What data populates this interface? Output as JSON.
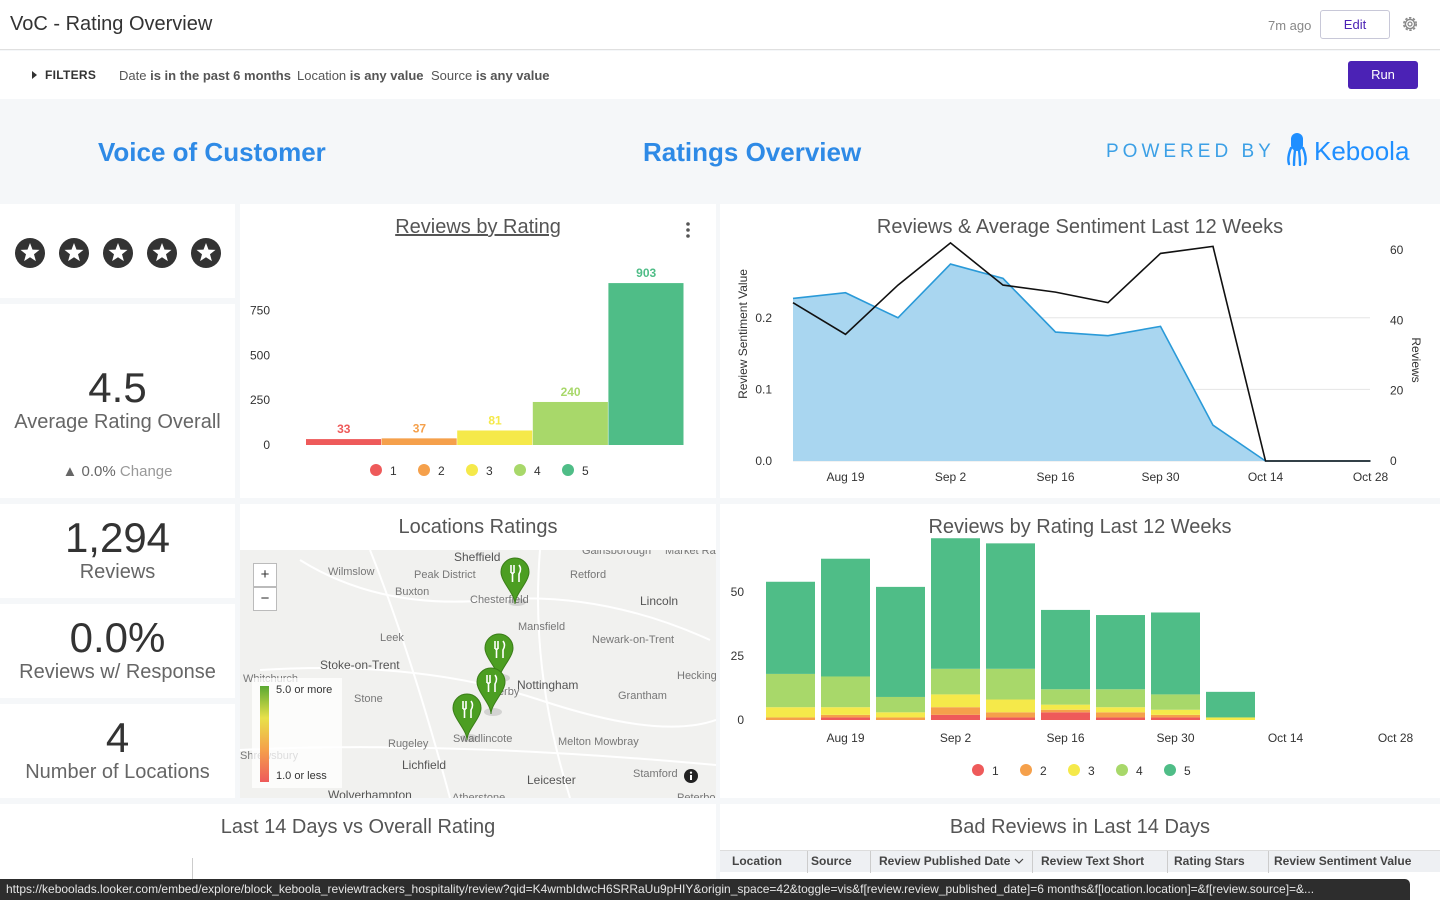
{
  "header": {
    "title": "VoC - Rating Overview",
    "updated": "7m ago",
    "edit_label": "Edit",
    "gear_icon": "gear-icon"
  },
  "filters": {
    "toggle_label": "FILTERS",
    "items": [
      {
        "field": "Date",
        "condition": "is in the past 6 months"
      },
      {
        "field": "Location",
        "condition": "is any value"
      },
      {
        "field": "Source",
        "condition": "is any value"
      }
    ],
    "run_label": "Run"
  },
  "banner": {
    "left_title": "Voice of Customer",
    "center_title": "Ratings Overview",
    "powered_by": "POWERED BY",
    "brand": "Keboola",
    "accent": "#2e8ae6"
  },
  "kpis": {
    "avg_rating": {
      "value": "4.5",
      "label": "Average Rating Overall",
      "change_arrow": "▲",
      "change_value": "0.0%",
      "change_label": "Change",
      "stars": 5
    },
    "reviews": {
      "value": "1,294",
      "label": "Reviews"
    },
    "response": {
      "value": "0.0%",
      "label": "Reviews w/ Response"
    },
    "locations": {
      "value": "4",
      "label": "Number of Locations"
    }
  },
  "rating_colors": {
    "1": "#ee5a5a",
    "2": "#f5a04b",
    "3": "#f5e94a",
    "4": "#a8d86a",
    "5": "#4fbd87"
  },
  "reviews_by_rating": {
    "title": "Reviews by Rating",
    "chart_data": {
      "type": "bar",
      "categories": [
        "1",
        "2",
        "3",
        "4",
        "5"
      ],
      "values": [
        33,
        37,
        81,
        240,
        903
      ],
      "ylim": [
        0,
        1000
      ],
      "yticks": [
        0,
        250,
        500,
        750
      ],
      "legend": [
        "1",
        "2",
        "3",
        "4",
        "5"
      ]
    }
  },
  "sentiment_chart": {
    "title": "Reviews & Average Sentiment Last 12 Weeks",
    "chart_data": {
      "type": "area",
      "x_ticks": [
        "Aug 19",
        "Sep 2",
        "Sep 16",
        "Sep 30",
        "Oct 14",
        "Oct 28"
      ],
      "ylabel_left": "Review Sentiment Value",
      "ylabel_right": "Reviews",
      "yticks_left": [
        "0.0",
        "0.1",
        "0.2"
      ],
      "yticks_right": [
        "0",
        "20",
        "40",
        "60"
      ],
      "series": [
        {
          "name": "Review Sentiment Value",
          "axis": "left",
          "values": [
            0.227,
            0.235,
            0.2,
            0.275,
            0.255,
            0.18,
            0.175,
            0.188,
            0.05,
            0,
            0,
            0
          ]
        },
        {
          "name": "Reviews",
          "axis": "right",
          "values": [
            45,
            36,
            50,
            62,
            50,
            48,
            45,
            59,
            61,
            0,
            0,
            0
          ]
        }
      ]
    }
  },
  "locations_map": {
    "title": "Locations Ratings",
    "zoom_in": "+",
    "zoom_out": "−",
    "legend_max": "5.0 or more",
    "legend_min": "1.0 or less",
    "labels": [
      "Sheffield",
      "Wilmslow",
      "Peak District",
      "Buxton",
      "Chesterfield",
      "Retford",
      "Lincoln",
      "Mansfield",
      "Leek",
      "Newark-on-Trent",
      "Stoke-on-Trent",
      "Whitchurch",
      "Stone",
      "Derby",
      "Nottingham",
      "Grantham",
      "Heckington",
      "Swadlincote",
      "Rugeley",
      "Melton Mowbray",
      "Lichfield",
      "Leicester",
      "Stamford",
      "Wolverhampton",
      "Atherstone",
      "Peterborough",
      "Market Rasen",
      "Gainsborough",
      "Shrewsbury"
    ]
  },
  "rating_weeks": {
    "title": "Reviews by Rating Last 12 Weeks",
    "chart_data": {
      "type": "bar",
      "stacked": true,
      "x_ticks": [
        "Aug 19",
        "Sep 2",
        "Sep 16",
        "Sep 30",
        "Oct 14",
        "Oct 28"
      ],
      "yticks": [
        0,
        25,
        50
      ],
      "ylim": [
        0,
        60
      ],
      "series": [
        {
          "name": "1",
          "values": [
            0,
            1,
            0,
            2,
            1,
            3,
            1,
            1,
            0,
            0,
            0,
            0
          ]
        },
        {
          "name": "2",
          "values": [
            1,
            1,
            1,
            3,
            2,
            1,
            2,
            1,
            0,
            0,
            0,
            0
          ]
        },
        {
          "name": "3",
          "values": [
            4,
            3,
            2,
            5,
            5,
            2,
            2,
            2,
            1,
            0,
            0,
            0
          ]
        },
        {
          "name": "4",
          "values": [
            13,
            12,
            6,
            10,
            12,
            6,
            7,
            6,
            0,
            0,
            0,
            0
          ]
        },
        {
          "name": "5",
          "values": [
            36,
            46,
            43,
            51,
            49,
            31,
            29,
            32,
            10,
            0,
            0,
            0
          ]
        }
      ],
      "legend": [
        "1",
        "2",
        "3",
        "4",
        "5"
      ]
    }
  },
  "last14": {
    "title": "Last 14 Days vs Overall Rating"
  },
  "bad_reviews": {
    "title": "Bad Reviews in Last 14 Days",
    "columns": [
      "Location",
      "Source",
      "Review Published Date",
      "Review Text Short",
      "Rating Stars",
      "Review Sentiment Value"
    ]
  },
  "status_url": "https://keboolads.looker.com/embed/explore/block_keboola_reviewtrackers_hospitality/review?qid=K4wmbIdwcH6SRRaUu9pHIY&origin_space=42&toggle=vis&f[review.review_published_date]=6 months&f[location.location]=&f[review.source]=&..."
}
